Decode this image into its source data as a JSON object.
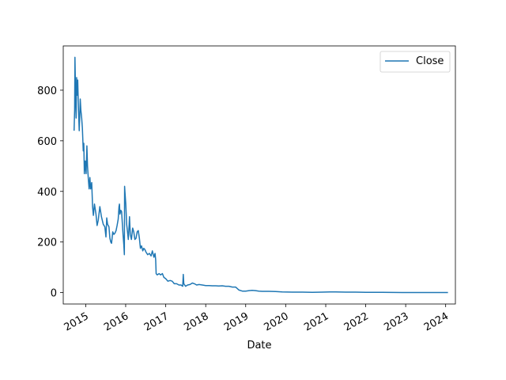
{
  "chart_data": {
    "type": "line",
    "title": "",
    "xlabel": "Date",
    "ylabel": "",
    "xlim": [
      "2014-06-10",
      "2024-03-30"
    ],
    "ylim": [
      -45,
      975
    ],
    "x_ticks": [
      "2015",
      "2016",
      "2017",
      "2018",
      "2019",
      "2020",
      "2021",
      "2022",
      "2023",
      "2024"
    ],
    "y_ticks": [
      0,
      200,
      400,
      600,
      800
    ],
    "grid": false,
    "legend": {
      "position": "top-right",
      "entries": [
        "Close"
      ]
    },
    "series": [
      {
        "name": "Close",
        "color": "#1f77b4",
        "points": [
          [
            "2014-09-17",
            640
          ],
          [
            "2014-09-22",
            720
          ],
          [
            "2014-09-25",
            930
          ],
          [
            "2014-10-01",
            760
          ],
          [
            "2014-10-06",
            690
          ],
          [
            "2014-10-10",
            850
          ],
          [
            "2014-10-15",
            780
          ],
          [
            "2014-10-20",
            840
          ],
          [
            "2014-10-27",
            720
          ],
          [
            "2014-11-03",
            640
          ],
          [
            "2014-11-08",
            700
          ],
          [
            "2014-11-12",
            765
          ],
          [
            "2014-11-18",
            720
          ],
          [
            "2014-11-25",
            690
          ],
          [
            "2014-12-02",
            650
          ],
          [
            "2014-12-10",
            560
          ],
          [
            "2014-12-15",
            590
          ],
          [
            "2014-12-20",
            470
          ],
          [
            "2014-12-28",
            520
          ],
          [
            "2015-01-05",
            470
          ],
          [
            "2015-01-12",
            580
          ],
          [
            "2015-01-18",
            500
          ],
          [
            "2015-01-25",
            450
          ],
          [
            "2015-02-01",
            410
          ],
          [
            "2015-02-08",
            455
          ],
          [
            "2015-02-15",
            410
          ],
          [
            "2015-02-25",
            435
          ],
          [
            "2015-03-05",
            340
          ],
          [
            "2015-03-12",
            305
          ],
          [
            "2015-03-22",
            350
          ],
          [
            "2015-04-05",
            310
          ],
          [
            "2015-04-15",
            265
          ],
          [
            "2015-04-25",
            285
          ],
          [
            "2015-05-10",
            340
          ],
          [
            "2015-05-25",
            300
          ],
          [
            "2015-06-10",
            270
          ],
          [
            "2015-06-25",
            260
          ],
          [
            "2015-07-05",
            220
          ],
          [
            "2015-07-12",
            295
          ],
          [
            "2015-07-20",
            270
          ],
          [
            "2015-08-01",
            260
          ],
          [
            "2015-08-10",
            215
          ],
          [
            "2015-08-18",
            200
          ],
          [
            "2015-08-25",
            195
          ],
          [
            "2015-09-05",
            240
          ],
          [
            "2015-09-15",
            230
          ],
          [
            "2015-09-25",
            235
          ],
          [
            "2015-10-05",
            245
          ],
          [
            "2015-10-15",
            265
          ],
          [
            "2015-10-25",
            290
          ],
          [
            "2015-11-01",
            340
          ],
          [
            "2015-11-05",
            350
          ],
          [
            "2015-11-10",
            310
          ],
          [
            "2015-11-18",
            325
          ],
          [
            "2015-11-25",
            320
          ],
          [
            "2015-12-01",
            275
          ],
          [
            "2015-12-08",
            230
          ],
          [
            "2015-12-15",
            190
          ],
          [
            "2015-12-20",
            150
          ],
          [
            "2015-12-22",
            420
          ],
          [
            "2015-12-25",
            400
          ],
          [
            "2016-01-02",
            350
          ],
          [
            "2016-01-10",
            270
          ],
          [
            "2016-01-18",
            240
          ],
          [
            "2016-01-25",
            210
          ],
          [
            "2016-02-01",
            260
          ],
          [
            "2016-02-05",
            300
          ],
          [
            "2016-02-12",
            230
          ],
          [
            "2016-02-22",
            210
          ],
          [
            "2016-03-05",
            255
          ],
          [
            "2016-03-15",
            240
          ],
          [
            "2016-03-25",
            210
          ],
          [
            "2016-04-05",
            215
          ],
          [
            "2016-04-15",
            240
          ],
          [
            "2016-04-25",
            245
          ],
          [
            "2016-05-05",
            215
          ],
          [
            "2016-05-15",
            175
          ],
          [
            "2016-05-25",
            185
          ],
          [
            "2016-06-05",
            165
          ],
          [
            "2016-06-15",
            175
          ],
          [
            "2016-06-25",
            170
          ],
          [
            "2016-07-05",
            160
          ],
          [
            "2016-07-20",
            150
          ],
          [
            "2016-08-05",
            155
          ],
          [
            "2016-08-20",
            145
          ],
          [
            "2016-09-01",
            165
          ],
          [
            "2016-09-15",
            140
          ],
          [
            "2016-09-25",
            155
          ],
          [
            "2016-10-01",
            130
          ],
          [
            "2016-10-05",
            75
          ],
          [
            "2016-10-15",
            70
          ],
          [
            "2016-11-01",
            75
          ],
          [
            "2016-11-15",
            70
          ],
          [
            "2016-12-01",
            75
          ],
          [
            "2016-12-15",
            60
          ],
          [
            "2017-01-01",
            55
          ],
          [
            "2017-01-20",
            45
          ],
          [
            "2017-02-10",
            48
          ],
          [
            "2017-03-01",
            45
          ],
          [
            "2017-03-20",
            35
          ],
          [
            "2017-04-10",
            35
          ],
          [
            "2017-05-01",
            30
          ],
          [
            "2017-05-20",
            30
          ],
          [
            "2017-06-05",
            25
          ],
          [
            "2017-06-10",
            72
          ],
          [
            "2017-06-15",
            35
          ],
          [
            "2017-07-01",
            25
          ],
          [
            "2017-07-20",
            30
          ],
          [
            "2017-08-10",
            32
          ],
          [
            "2017-09-01",
            38
          ],
          [
            "2017-09-20",
            35
          ],
          [
            "2017-10-10",
            30
          ],
          [
            "2017-11-01",
            32
          ],
          [
            "2017-12-01",
            30
          ],
          [
            "2018-01-01",
            28
          ],
          [
            "2018-02-01",
            28
          ],
          [
            "2018-03-01",
            27
          ],
          [
            "2018-04-01",
            27
          ],
          [
            "2018-05-01",
            26
          ],
          [
            "2018-06-01",
            27
          ],
          [
            "2018-07-01",
            25
          ],
          [
            "2018-08-01",
            25
          ],
          [
            "2018-09-01",
            22
          ],
          [
            "2018-10-01",
            22
          ],
          [
            "2018-11-01",
            10
          ],
          [
            "2018-12-01",
            6
          ],
          [
            "2019-01-01",
            6
          ],
          [
            "2019-02-01",
            8
          ],
          [
            "2019-03-01",
            9
          ],
          [
            "2019-04-01",
            8
          ],
          [
            "2019-05-01",
            6
          ],
          [
            "2019-06-01",
            5
          ],
          [
            "2019-08-01",
            5
          ],
          [
            "2019-10-01",
            4
          ],
          [
            "2019-12-01",
            3
          ],
          [
            "2020-03-01",
            2
          ],
          [
            "2020-06-01",
            2
          ],
          [
            "2020-09-01",
            1
          ],
          [
            "2020-12-01",
            2
          ],
          [
            "2021-02-10",
            3
          ],
          [
            "2021-04-01",
            3
          ],
          [
            "2021-07-01",
            2
          ],
          [
            "2021-10-01",
            2
          ],
          [
            "2022-01-01",
            1
          ],
          [
            "2022-06-01",
            1
          ],
          [
            "2023-01-01",
            0.5
          ],
          [
            "2023-06-01",
            0.5
          ],
          [
            "2024-01-01",
            0.5
          ],
          [
            "2024-01-22",
            0.5
          ]
        ]
      }
    ]
  }
}
